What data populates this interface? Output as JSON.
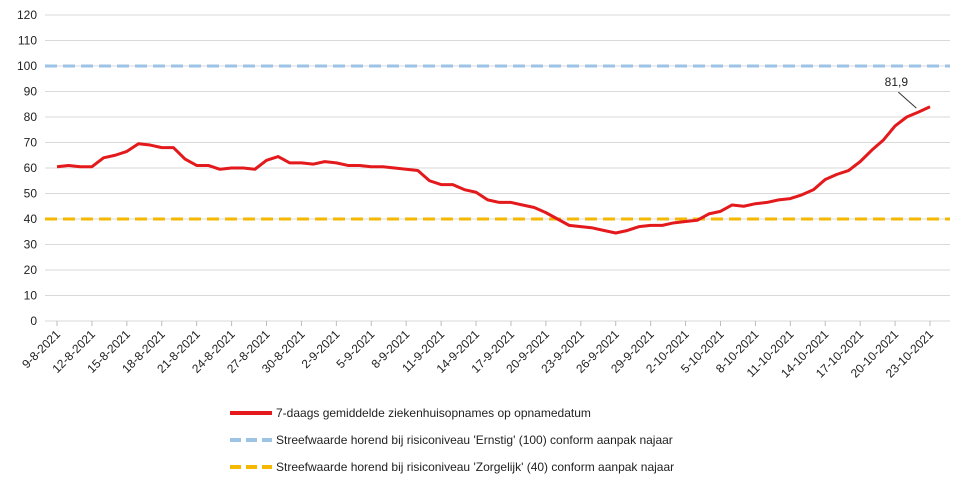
{
  "chart_data": {
    "type": "line",
    "categories": [
      "9-8-2021",
      null,
      null,
      "12-8-2021",
      null,
      null,
      "15-8-2021",
      null,
      null,
      "18-8-2021",
      null,
      null,
      "21-8-2021",
      null,
      null,
      "24-8-2021",
      null,
      null,
      "27-8-2021",
      null,
      null,
      "30-8-2021",
      null,
      null,
      "2-9-2021",
      null,
      null,
      "5-9-2021",
      null,
      null,
      "8-9-2021",
      null,
      null,
      "11-9-2021",
      null,
      null,
      "14-9-2021",
      null,
      null,
      "17-9-2021",
      null,
      null,
      "20-9-2021",
      null,
      null,
      "23-9-2021",
      null,
      null,
      "26-9-2021",
      null,
      null,
      "29-9-2021",
      null,
      null,
      "2-10-2021",
      null,
      null,
      "5-10-2021",
      null,
      null,
      "8-10-2021",
      null,
      null,
      "11-10-2021",
      null,
      null,
      "14-10-2021",
      null,
      null,
      "17-10-2021",
      null,
      null,
      "20-10-2021",
      null,
      null,
      "23-10-2021"
    ],
    "series": [
      {
        "name": "7-daags gemiddelde ziekenhuisopnames op opnamedatum",
        "color": "#e3191c",
        "values": [
          60.5,
          61,
          60.5,
          60.5,
          64,
          65,
          66.5,
          69.5,
          69,
          68,
          68,
          63.5,
          61,
          61,
          59.5,
          60,
          60,
          59.5,
          63,
          64.5,
          62,
          62,
          61.5,
          62.5,
          62,
          61,
          61,
          60.5,
          60.5,
          60,
          59.5,
          59,
          55,
          53.5,
          53.5,
          51.5,
          50.5,
          47.5,
          46.5,
          46.5,
          45.5,
          44.5,
          42.5,
          40,
          37.5,
          37,
          36.5,
          35.5,
          34.5,
          35.5,
          37,
          37.5,
          37.5,
          38.5,
          39,
          39.5,
          42,
          43,
          45.5,
          45,
          46,
          46.5,
          47.5,
          48,
          49.5,
          51.5,
          55.5,
          57.5,
          59,
          62.5,
          67,
          71,
          76.5,
          80,
          81.9,
          84
        ],
        "value_labels": [
          null,
          null,
          null,
          null,
          null,
          null,
          null,
          null,
          null,
          null,
          null,
          null,
          null,
          null,
          null,
          null,
          null,
          null,
          null,
          null,
          null,
          null,
          null,
          null,
          null,
          null,
          null,
          null,
          null,
          null,
          null,
          null,
          null,
          null,
          null,
          null,
          null,
          null,
          null,
          null,
          null,
          null,
          null,
          null,
          null,
          null,
          null,
          null,
          null,
          null,
          null,
          null,
          null,
          null,
          null,
          null,
          null,
          null,
          null,
          null,
          null,
          null,
          null,
          null,
          null,
          null,
          null,
          null,
          null,
          null,
          null,
          null,
          null,
          null,
          "81,9",
          null
        ]
      }
    ],
    "reference_lines": [
      {
        "name": "Streefwaarde horend bij risiconiveau 'Ernstig' (100) conform aanpak najaar",
        "color": "#9dc3e6",
        "value": 100
      },
      {
        "name": "Streefwaarde horend bij risiconiveau 'Zorgelijk' (40) conform aanpak najaar",
        "color": "#f5b800",
        "value": 40
      }
    ],
    "ylim": [
      0,
      120
    ],
    "yticks": [
      0,
      10,
      20,
      30,
      40,
      50,
      60,
      70,
      80,
      90,
      100,
      110,
      120
    ],
    "grid": true
  }
}
